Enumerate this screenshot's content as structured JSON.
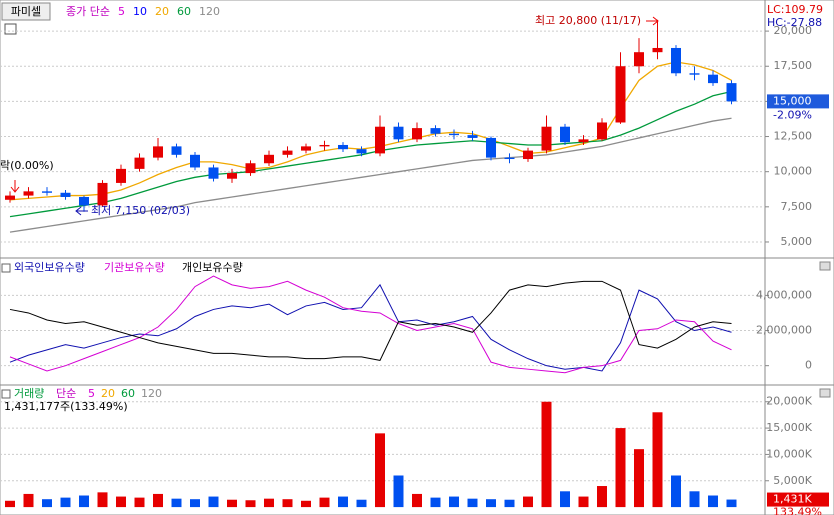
{
  "chart_data": [
    {
      "type": "candlestick",
      "title": "파미셀",
      "subtitle": "종가 단순",
      "ma_periods": [
        {
          "label": "5",
          "color": "#d400d4"
        },
        {
          "label": "10",
          "color": "#0000ff"
        }
      ],
      "open": [
        8000,
        8300,
        8600,
        8500,
        8200,
        7600,
        9200,
        10200,
        11000,
        11800,
        11200,
        10300,
        9500,
        9900,
        10600,
        11200,
        11500,
        11800,
        11900,
        11600,
        11300,
        13200,
        12300,
        13100,
        12700,
        12600,
        12400,
        11000,
        10900,
        11500,
        13200,
        12100,
        12300,
        13500,
        17500,
        18500,
        18800,
        17000,
        16900,
        16300
      ],
      "high": [
        8600,
        8900,
        8900,
        8700,
        8300,
        9400,
        10500,
        11300,
        12400,
        12000,
        11400,
        10500,
        10200,
        10800,
        11500,
        11800,
        12000,
        12200,
        12100,
        11800,
        14000,
        13500,
        13500,
        13300,
        13000,
        12900,
        12500,
        11300,
        11700,
        14000,
        13400,
        12600,
        13800,
        18500,
        19500,
        20800,
        19000,
        17500,
        17200,
        16500
      ],
      "low": [
        7800,
        8100,
        8300,
        8000,
        7150,
        7500,
        9000,
        10000,
        10800,
        11000,
        10100,
        9300,
        9200,
        9700,
        10400,
        11000,
        11300,
        11500,
        11400,
        11100,
        11100,
        12100,
        12100,
        12500,
        12300,
        12200,
        10800,
        10600,
        10700,
        11300,
        11900,
        11900,
        12200,
        13400,
        17000,
        18000,
        16800,
        16500,
        16100,
        14800
      ],
      "close": [
        8300,
        8600,
        8500,
        8200,
        7600,
        9200,
        10200,
        11000,
        11800,
        11200,
        10300,
        9500,
        9900,
        10600,
        11200,
        11500,
        11800,
        11900,
        11600,
        11300,
        13200,
        12300,
        13100,
        12700,
        12600,
        12400,
        11000,
        10900,
        11500,
        13200,
        12100,
        12300,
        13500,
        17500,
        18500,
        18800,
        17000,
        16900,
        16300,
        15000
      ],
      "up_color": "#e60000",
      "down_color": "#0050f0",
      "series": [
        {
          "name": "20",
          "color": "#f0a800",
          "values": [
            8000,
            8100,
            8200,
            8300,
            8300,
            8400,
            8700,
            9200,
            9800,
            10300,
            10700,
            10700,
            10500,
            10200,
            10300,
            10700,
            11200,
            11500,
            11700,
            11600,
            11800,
            12100,
            12400,
            12700,
            12800,
            12700,
            12300,
            11800,
            11300,
            11400,
            11700,
            12000,
            12400,
            14500,
            16500,
            17500,
            17800,
            17600,
            17200,
            16500
          ]
        },
        {
          "name": "60",
          "color": "#009a3c",
          "values": [
            6800,
            7000,
            7200,
            7400,
            7600,
            7800,
            8100,
            8500,
            8900,
            9300,
            9600,
            9800,
            9900,
            10000,
            10200,
            10400,
            10600,
            10800,
            11000,
            11200,
            11500,
            11700,
            11900,
            12000,
            12100,
            12200,
            12100,
            12000,
            11900,
            11900,
            12000,
            12100,
            12200,
            12600,
            13100,
            13700,
            14300,
            14800,
            15400,
            15700
          ]
        },
        {
          "name": "120",
          "color": "#8c8c8c",
          "values": [
            5700,
            5900,
            6100,
            6300,
            6500,
            6700,
            6900,
            7100,
            7300,
            7500,
            7800,
            8000,
            8200,
            8400,
            8600,
            8800,
            9000,
            9200,
            9400,
            9600,
            9800,
            10000,
            10200,
            10400,
            10600,
            10800,
            10900,
            11000,
            11100,
            11200,
            11400,
            11600,
            11800,
            12100,
            12400,
            12700,
            13000,
            13300,
            13600,
            13800
          ]
        }
      ],
      "ylim": [
        3860,
        22070
      ],
      "yticks": [
        {
          "value": 5000,
          "label": "5,000"
        },
        {
          "value": 7500,
          "label": "7,500"
        },
        {
          "value": 10000,
          "label": "10,000"
        },
        {
          "value": 12500,
          "label": "12,500"
        },
        {
          "value": 15000,
          "label": "15,000"
        },
        {
          "value": 17500,
          "label": "17,500"
        },
        {
          "value": 20000,
          "label": "20,000"
        }
      ],
      "grid": true,
      "annotations": [
        "최고 20,800 (11/17)",
        "최저 7,150 (02/03)",
        "락(0.00%)"
      ],
      "lc": "LC:109.79",
      "hc": "HC:-27.88",
      "last_price": {
        "value": 15000,
        "label": "15,000"
      },
      "change": "-2.09%"
    },
    {
      "type": "line",
      "series": [
        {
          "name": "외국인보유수량",
          "color": "#1010b0",
          "values": [
            200000,
            600000,
            900000,
            1200000,
            1000000,
            1300000,
            1600000,
            1800000,
            1700000,
            2100000,
            2800000,
            3200000,
            3400000,
            3300000,
            3500000,
            2900000,
            3400000,
            3600000,
            3200000,
            3300000,
            4600000,
            2500000,
            2600000,
            2300000,
            2500000,
            2800000,
            1500000,
            900000,
            400000,
            0,
            -200000,
            -100000,
            -300000,
            1300000,
            4300000,
            3800000,
            2500000,
            2000000,
            2200000,
            1900000
          ]
        },
        {
          "name": "기관보유수량",
          "color": "#d400d4",
          "values": [
            500000,
            100000,
            -300000,
            0,
            400000,
            800000,
            1200000,
            1600000,
            2200000,
            3200000,
            4500000,
            5100000,
            4600000,
            4400000,
            4500000,
            4800000,
            4300000,
            3900000,
            3300000,
            3100000,
            3000000,
            2400000,
            2000000,
            2200000,
            2400000,
            2100000,
            200000,
            -100000,
            -200000,
            -300000,
            -400000,
            -100000,
            0,
            300000,
            2000000,
            2100000,
            2600000,
            2500000,
            1400000,
            900000
          ]
        },
        {
          "name": "개인보유수량",
          "color": "#000000",
          "values": [
            3200000,
            3000000,
            2600000,
            2400000,
            2500000,
            2200000,
            1900000,
            1600000,
            1300000,
            1100000,
            900000,
            700000,
            700000,
            600000,
            500000,
            500000,
            400000,
            400000,
            500000,
            500000,
            300000,
            2500000,
            2300000,
            2400000,
            2200000,
            1900000,
            3000000,
            4300000,
            4600000,
            4500000,
            4700000,
            4800000,
            4800000,
            4300000,
            1200000,
            1000000,
            1500000,
            2200000,
            2500000,
            2400000
          ]
        }
      ],
      "ylim": [
        -1100000,
        5900000
      ],
      "yticks": [
        0,
        {
          "value": 2000000,
          "label": "2,000,000"
        },
        {
          "value": 4000000,
          "label": "4,000,000"
        }
      ],
      "grid": true
    },
    {
      "type": "bar",
      "title": "거래량",
      "subtitle": "단순",
      "legend_labels": [
        {
          "label": "5",
          "color": "#d400d4"
        },
        {
          "label": "20",
          "color": "#f0a800"
        },
        {
          "label": "60",
          "color": "#009a3c"
        },
        {
          "label": "120",
          "color": "#8c8c8c"
        }
      ],
      "info": "1,431,177주(133.49%)",
      "values": [
        1200,
        2500,
        1500,
        1800,
        2200,
        2800,
        2000,
        1800,
        2500,
        1600,
        1500,
        2000,
        1400,
        1300,
        1600,
        1500,
        1200,
        1800,
        2000,
        1400,
        14000,
        6000,
        2500,
        1800,
        2000,
        1600,
        1500,
        1400,
        2000,
        20000,
        3000,
        2000,
        4000,
        15000,
        11000,
        18000,
        6000,
        3000,
        2200,
        1431
      ],
      "ylim": [
        -1500,
        22800
      ],
      "yticks": [
        {
          "value": 5000,
          "label": "5,000K"
        },
        {
          "value": 10000,
          "label": "10,000K"
        },
        {
          "value": 15000,
          "label": "15,000K"
        },
        {
          "value": 20000,
          "label": "20,000K"
        }
      ],
      "grid": true,
      "last_volume": {
        "value": 1431,
        "label": "1,431K"
      },
      "ratio": "133.49%"
    }
  ]
}
